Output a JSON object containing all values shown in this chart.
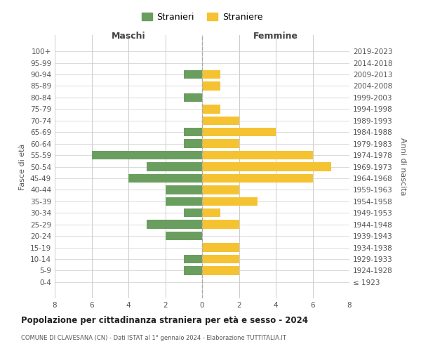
{
  "age_groups": [
    "100+",
    "95-99",
    "90-94",
    "85-89",
    "80-84",
    "75-79",
    "70-74",
    "65-69",
    "60-64",
    "55-59",
    "50-54",
    "45-49",
    "40-44",
    "35-39",
    "30-34",
    "25-29",
    "20-24",
    "15-19",
    "10-14",
    "5-9",
    "0-4"
  ],
  "birth_years": [
    "≤ 1923",
    "1924-1928",
    "1929-1933",
    "1934-1938",
    "1939-1943",
    "1944-1948",
    "1949-1953",
    "1954-1958",
    "1959-1963",
    "1964-1968",
    "1969-1973",
    "1974-1978",
    "1979-1983",
    "1984-1988",
    "1989-1993",
    "1994-1998",
    "1999-2003",
    "2004-2008",
    "2009-2013",
    "2014-2018",
    "2019-2023"
  ],
  "maschi": [
    0,
    0,
    1,
    0,
    1,
    0,
    0,
    1,
    1,
    6,
    3,
    4,
    2,
    2,
    1,
    3,
    2,
    0,
    1,
    1,
    0
  ],
  "femmine": [
    0,
    0,
    1,
    1,
    0,
    1,
    2,
    4,
    2,
    6,
    7,
    6,
    2,
    3,
    1,
    2,
    0,
    2,
    2,
    2,
    0
  ],
  "maschi_color": "#6a9e5e",
  "femmine_color": "#f5c332",
  "background_color": "#ffffff",
  "grid_color": "#cccccc",
  "zero_line_color": "#aaaaaa",
  "title": "Popolazione per cittadinanza straniera per età e sesso - 2024",
  "subtitle": "COMUNE DI CLAVESANA (CN) - Dati ISTAT al 1° gennaio 2024 - Elaborazione TUTTITALIA.IT",
  "xlabel_left": "Maschi",
  "xlabel_right": "Femmine",
  "ylabel_left": "Fasce di età",
  "ylabel_right": "Anni di nascita",
  "legend_maschi": "Stranieri",
  "legend_femmine": "Straniere",
  "xlim": 8,
  "bar_height": 0.75
}
